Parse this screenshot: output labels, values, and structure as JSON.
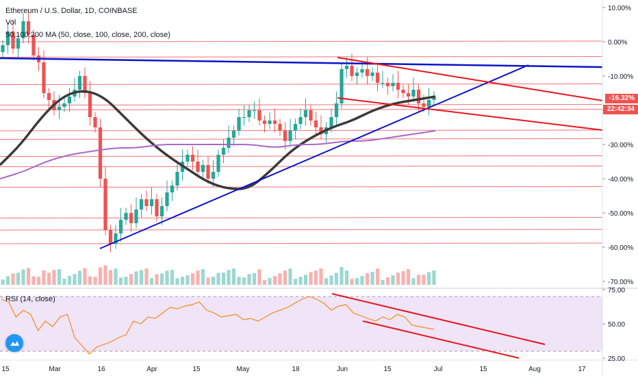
{
  "header": {
    "title": "Ethereum / U.S. Dollar, 1D, COINBASE",
    "volume_label": "Vol",
    "ma_label": "50,100,200 MA (50, close, 100, close, 200, close)",
    "rsi_label": "RSI (14, close)"
  },
  "price_axis": {
    "ticks": [
      "10.00%",
      "0.00%",
      "-10.00%",
      "-20.00%",
      "-30.00%",
      "-40.00%",
      "-50.00%",
      "-60.00%",
      "-70.00%"
    ],
    "last_value_badge": "-16.32%",
    "countdown_badge": "22:42:34"
  },
  "rsi_axis": {
    "ticks": [
      "75.00",
      "50.00",
      "25.00"
    ]
  },
  "time_axis": {
    "labels": [
      "15",
      "Mar",
      "16",
      "Apr",
      "15",
      "May",
      "18",
      "Jun",
      "15",
      "Jul",
      "15",
      "Aug",
      "17"
    ]
  },
  "colors": {
    "up": "#26a69a",
    "down": "#ef5350",
    "trendline": "#0a14c8",
    "channel": "#e8141e",
    "ma_fast": "#3a3a3a",
    "ma_slow": "#a668c7",
    "rsi_line": "#f28a18",
    "rsi_band": "#f0e4f7",
    "badge": "#ef5350",
    "logo": "#2196f3"
  },
  "icons": {
    "logo": "tradingview-cloud-icon"
  },
  "chart_data": [
    {
      "type": "candlestick",
      "series": [
        {
          "name": "Ethereum / U.S. Dollar",
          "values": [
            -1,
            3,
            -2,
            1,
            6,
            2,
            -4,
            -6,
            -15,
            -17,
            -20,
            -19,
            -18,
            -16,
            -14,
            -10,
            -15,
            -22,
            -25,
            -40,
            -55,
            -59,
            -56,
            -52,
            -50,
            -53,
            -49,
            -46,
            -48,
            -46,
            -51,
            -48,
            -44,
            -42,
            -38,
            -35,
            -33,
            -35,
            -38,
            -36,
            -40,
            -38,
            -33,
            -31,
            -28,
            -26,
            -22,
            -22,
            -20,
            -20,
            -23,
            -24,
            -23,
            -24,
            -26,
            -29,
            -26,
            -24,
            -22,
            -20,
            -23,
            -25,
            -27,
            -25,
            -22,
            -18,
            -8,
            -7,
            -10,
            -9,
            -8,
            -10,
            -9,
            -12,
            -12,
            -13,
            -12,
            -14,
            -15,
            -16,
            -14,
            -18,
            -19,
            -17,
            -16
          ]
        }
      ],
      "ylim": [
        -72,
        12
      ]
    },
    {
      "type": "line",
      "series": [
        {
          "name": "MA 50",
          "values": [
            -36,
            -30,
            -22,
            -16,
            -14,
            -16,
            -22,
            -28,
            -33,
            -37,
            -41,
            -43,
            -43,
            -38,
            -32,
            -28,
            -25,
            -23,
            -20,
            -18,
            -17,
            -16
          ]
        },
        {
          "name": "MA 100",
          "values": [
            -40,
            -38,
            -35,
            -33,
            -32,
            -31,
            -31,
            -30,
            -30,
            -30,
            -30,
            -30,
            -31,
            -30,
            -30,
            -29,
            -29,
            -28,
            -27,
            -26
          ]
        }
      ]
    },
    {
      "type": "line",
      "series": [
        {
          "name": "RSI",
          "values": [
            68,
            66,
            55,
            60,
            57,
            45,
            52,
            48,
            55,
            57,
            40,
            34,
            28,
            33,
            35,
            37,
            40,
            42,
            52,
            50,
            55,
            54,
            58,
            62,
            61,
            63,
            64,
            66,
            60,
            58,
            55,
            56,
            57,
            53,
            54,
            52,
            55,
            58,
            60,
            62,
            65,
            68,
            70,
            68,
            65,
            60,
            63,
            64,
            58,
            56,
            54,
            52,
            55,
            53,
            57,
            55,
            49,
            48,
            47,
            46
          ]
        }
      ],
      "ylim": [
        20,
        80
      ]
    }
  ]
}
